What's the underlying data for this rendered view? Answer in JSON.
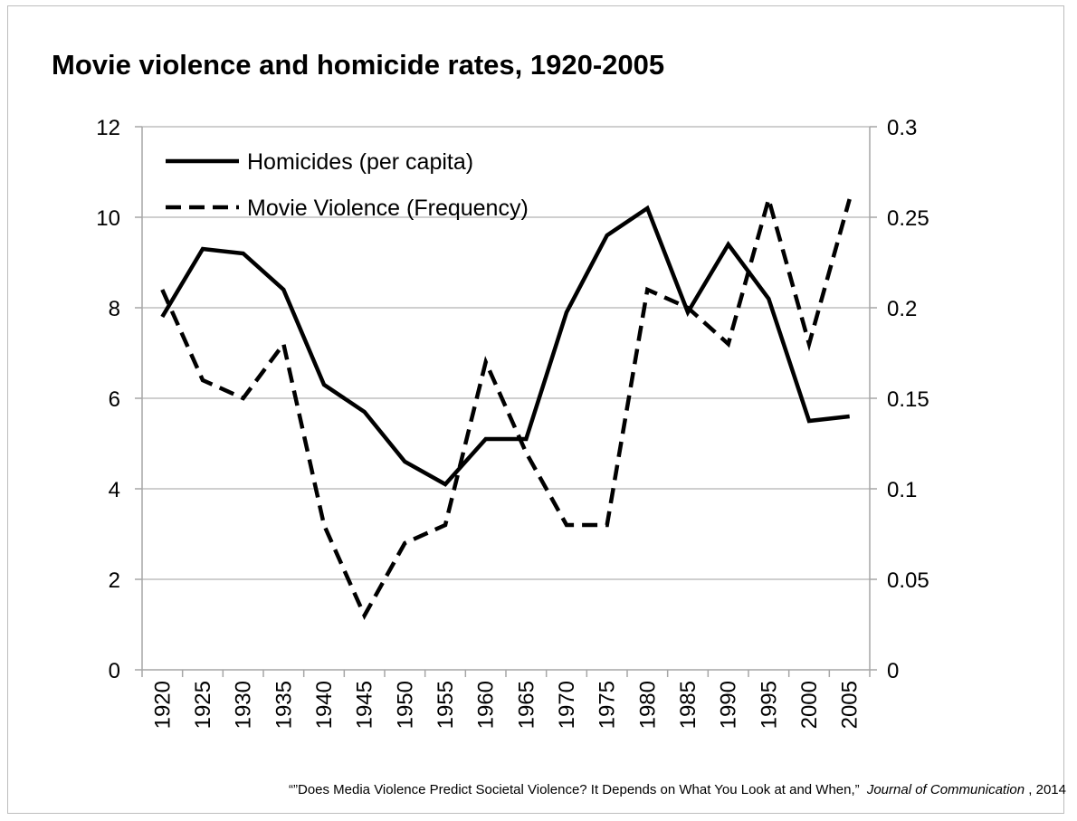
{
  "chart_data": {
    "type": "line",
    "title": "Movie violence and homicide rates, 1920-2005",
    "x": [
      "1920",
      "1925",
      "1930",
      "1935",
      "1940",
      "1945",
      "1950",
      "1955",
      "1960",
      "1965",
      "1970",
      "1975",
      "1980",
      "1985",
      "1990",
      "1995",
      "2000",
      "2005"
    ],
    "y_left_ticks": [
      "0",
      "2",
      "4",
      "6",
      "8",
      "10",
      "12"
    ],
    "y_right_ticks": [
      "0",
      "0.05",
      "0.1",
      "0.15",
      "0.2",
      "0.25",
      "0.3"
    ],
    "ylim_left": [
      0,
      12
    ],
    "ylim_right": [
      0,
      0.3
    ],
    "grid": "horizontal",
    "legend_position": "top-left",
    "series": [
      {
        "name": "Homicides (per capita)",
        "axis": "left",
        "style": "solid",
        "values": [
          7.8,
          9.3,
          9.2,
          8.4,
          6.3,
          5.7,
          4.6,
          4.1,
          5.1,
          5.1,
          7.9,
          9.6,
          10.2,
          7.9,
          9.4,
          8.2,
          5.5,
          5.6
        ]
      },
      {
        "name": "Movie Violence (Frequency)",
        "axis": "right",
        "style": "dashed",
        "values": [
          0.21,
          0.16,
          0.15,
          0.18,
          0.08,
          0.03,
          0.07,
          0.08,
          0.17,
          0.12,
          0.08,
          0.08,
          0.21,
          0.2,
          0.18,
          0.26,
          0.18,
          0.26
        ]
      }
    ],
    "source": {
      "text": "“”Does Media Violence Predict Societal Violence? It Depends on What You Look at and When,”",
      "journal": "Journal of Communication",
      "year": ", 2014"
    }
  },
  "colors": {
    "line": "#000000",
    "grid": "#bfbfbf",
    "axis": "#a6a6a6",
    "frame": "#bdbdbd"
  }
}
